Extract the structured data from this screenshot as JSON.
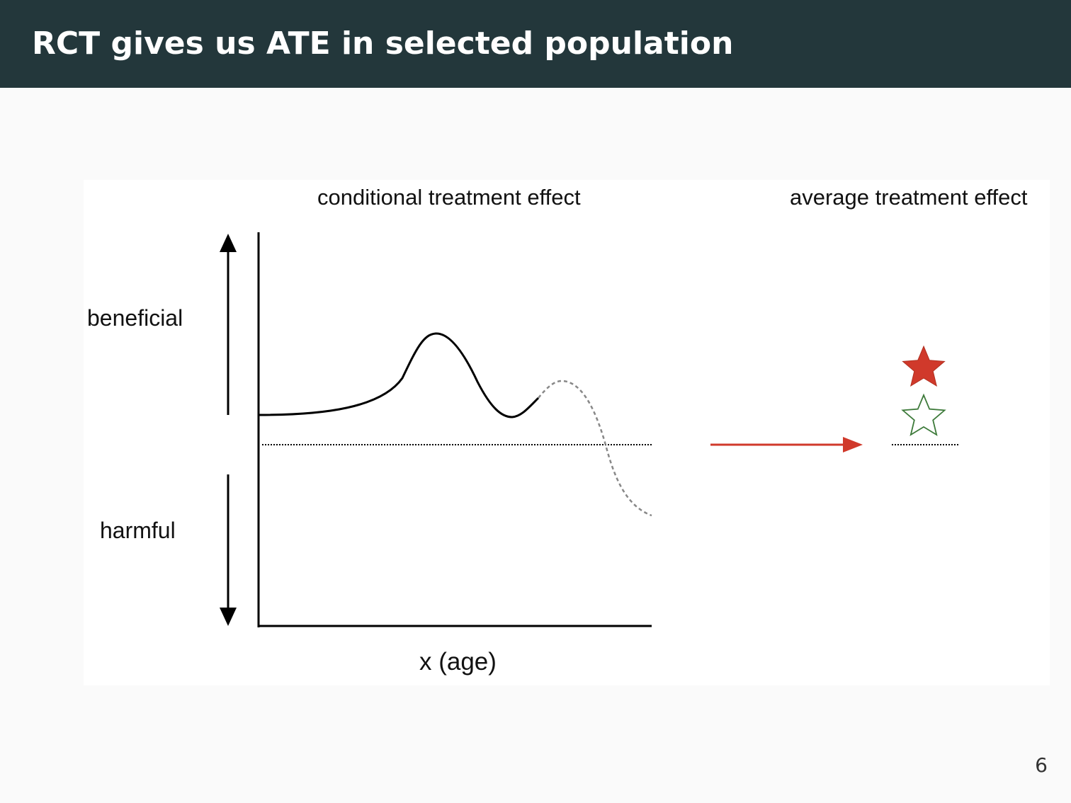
{
  "slide": {
    "title": "RCT gives us ATE in selected population",
    "page_number": "6"
  },
  "figure": {
    "cte_heading": "conditional treatment effect",
    "ate_heading": "average treatment effect",
    "beneficial_label": "beneficial",
    "harmful_label": "harmful",
    "x_axis_label": "x (age)"
  },
  "colors": {
    "header_bg": "#23373b",
    "arrow_red": "#d0392b",
    "star_filled": "#d0392b",
    "star_outline": "#3d7a3a",
    "curve_extrapolated": "#888888"
  }
}
